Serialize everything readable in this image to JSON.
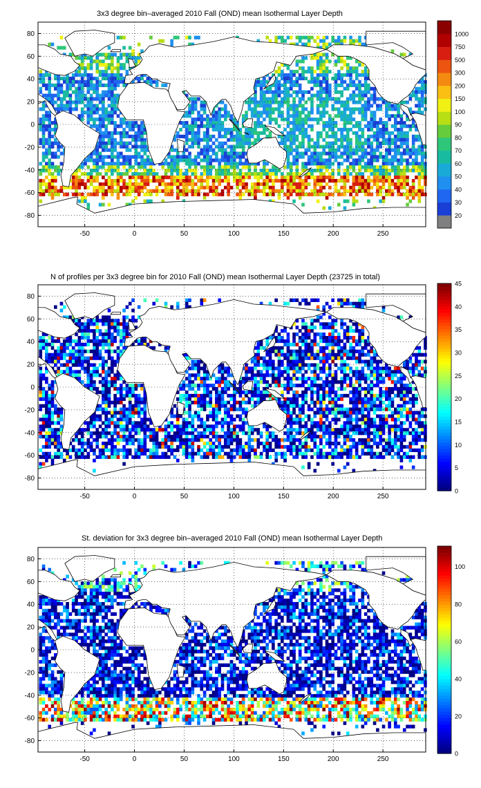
{
  "panels": [
    {
      "title": "3x3 degree bin–averaged 2010 Fall (OND) mean Isothermal Layer Depth",
      "colorbar": {
        "type": "categorical",
        "labels": [
          "20",
          "30",
          "40",
          "50",
          "60",
          "70",
          "80",
          "90",
          "100",
          "150",
          "200",
          "300",
          "500",
          "750",
          "1000"
        ],
        "colors": [
          "#808080",
          "#1a3fd6",
          "#1f66f0",
          "#1f8ff0",
          "#1aaad8",
          "#19bba0",
          "#2ec77a",
          "#66cc3c",
          "#b8de14",
          "#f0f014",
          "#fbbf14",
          "#f58a10",
          "#ec5410",
          "#d81e10",
          "#b00000",
          "#8a0000"
        ]
      },
      "xticks": [
        "-50",
        "0",
        "50",
        "100",
        "150",
        "200",
        "250"
      ],
      "yticks": [
        "80",
        "60",
        "40",
        "20",
        "0",
        "-20",
        "-40",
        "-60",
        "-80"
      ]
    },
    {
      "title": "N of profiles per 3x3 degree bin for 2010 Fall (OND) mean Isothermal Layer Depth  (23725 in total)",
      "colorbar": {
        "type": "continuous",
        "labels": [
          "45",
          "40",
          "35",
          "30",
          "25",
          "20",
          "15",
          "10",
          "5",
          "0"
        ],
        "range": [
          0,
          45
        ]
      },
      "xticks": [
        "-50",
        "0",
        "50",
        "100",
        "150",
        "200",
        "250"
      ],
      "yticks": [
        "80",
        "60",
        "40",
        "20",
        "0",
        "-20",
        "-40",
        "-60",
        "-80"
      ]
    },
    {
      "title": "St. deviation for 3x3 degree bin–averaged 2010 Fall (OND) mean Isothermal Layer Depth",
      "colorbar": {
        "type": "continuous",
        "labels": [
          "100",
          "80",
          "60",
          "40",
          "20",
          "0"
        ],
        "range": [
          0,
          111
        ]
      },
      "xticks": [
        "-50",
        "0",
        "50",
        "100",
        "150",
        "200",
        "250"
      ],
      "yticks": [
        "80",
        "60",
        "40",
        "20",
        "0",
        "-20",
        "-40",
        "-60",
        "-80"
      ]
    }
  ]
}
